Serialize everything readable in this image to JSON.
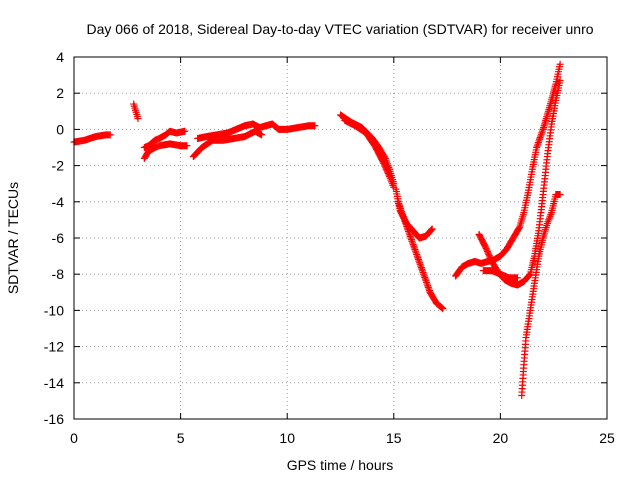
{
  "chart_data": {
    "type": "scatter",
    "title": "Day 066 of 2018, Sidereal Day-to-day VTEC variation (SDTVAR) for receiver unro",
    "xlabel": "GPS time / hours",
    "ylabel": "SDTVAR / TECUs",
    "xlim": [
      0,
      25
    ],
    "ylim": [
      -16,
      4
    ],
    "xticks": [
      0,
      5,
      10,
      15,
      20,
      25
    ],
    "yticks": [
      -16,
      -14,
      -12,
      -10,
      -8,
      -6,
      -4,
      -2,
      0,
      2,
      4
    ],
    "grid": true,
    "marker": "+",
    "color": "#ff0000",
    "series": [
      {
        "name": "seg1",
        "points": [
          [
            0,
            -0.7
          ],
          [
            0.5,
            -0.6
          ],
          [
            1.0,
            -0.4
          ],
          [
            1.5,
            -0.3
          ],
          [
            1.7,
            -0.3
          ]
        ]
      },
      {
        "name": "seg2",
        "points": [
          [
            2.8,
            1.4
          ],
          [
            3.0,
            0.6
          ]
        ]
      },
      {
        "name": "seg3",
        "points": [
          [
            3.3,
            -1.6
          ],
          [
            3.5,
            -1.2
          ],
          [
            3.8,
            -1.0
          ],
          [
            4.0,
            -0.9
          ],
          [
            4.5,
            -0.8
          ],
          [
            5.0,
            -0.9
          ],
          [
            5.3,
            -0.9
          ]
        ]
      },
      {
        "name": "seg4",
        "points": [
          [
            3.3,
            -1.0
          ],
          [
            3.5,
            -0.9
          ],
          [
            3.8,
            -0.6
          ],
          [
            4.0,
            -0.5
          ],
          [
            4.3,
            -0.3
          ],
          [
            4.5,
            -0.1
          ],
          [
            4.8,
            -0.2
          ],
          [
            5.2,
            -0.1
          ]
        ]
      },
      {
        "name": "seg5",
        "points": [
          [
            5.6,
            -1.5
          ],
          [
            6.0,
            -1.0
          ],
          [
            6.5,
            -0.6
          ],
          [
            7.0,
            -0.6
          ],
          [
            7.5,
            -0.5
          ],
          [
            8.0,
            -0.4
          ],
          [
            8.5,
            -0.1
          ],
          [
            8.8,
            -0.3
          ]
        ]
      },
      {
        "name": "seg6",
        "points": [
          [
            5.8,
            -0.5
          ],
          [
            6.2,
            -0.4
          ],
          [
            6.7,
            -0.3
          ],
          [
            7.2,
            -0.2
          ],
          [
            7.6,
            0.0
          ],
          [
            8.0,
            0.2
          ],
          [
            8.4,
            0.3
          ],
          [
            8.7,
            0.1
          ],
          [
            9.0,
            0.2
          ],
          [
            9.3,
            0.3
          ],
          [
            9.6,
            0.0
          ],
          [
            10.0,
            0.0
          ],
          [
            10.5,
            0.1
          ],
          [
            11.0,
            0.2
          ],
          [
            11.3,
            0.2
          ]
        ]
      },
      {
        "name": "seg7",
        "points": [
          [
            12.5,
            0.8
          ],
          [
            13.0,
            0.4
          ],
          [
            13.5,
            0.1
          ],
          [
            14.0,
            -0.5
          ],
          [
            14.3,
            -1.0
          ],
          [
            14.6,
            -1.6
          ],
          [
            14.8,
            -2.2
          ],
          [
            15.0,
            -3.0
          ]
        ]
      },
      {
        "name": "seg8",
        "points": [
          [
            12.7,
            0.5
          ],
          [
            13.2,
            0.2
          ],
          [
            13.7,
            -0.2
          ],
          [
            14.1,
            -0.9
          ],
          [
            14.5,
            -1.8
          ],
          [
            14.8,
            -2.6
          ],
          [
            15.0,
            -3.2
          ]
        ]
      },
      {
        "name": "seg9",
        "points": [
          [
            15.1,
            -3.3
          ],
          [
            15.3,
            -4.5
          ],
          [
            15.6,
            -5.2
          ],
          [
            15.9,
            -5.6
          ],
          [
            16.2,
            -6.0
          ],
          [
            16.5,
            -5.9
          ],
          [
            16.8,
            -5.5
          ]
        ]
      },
      {
        "name": "seg10",
        "points": [
          [
            15.2,
            -4.0
          ],
          [
            15.5,
            -5.0
          ],
          [
            15.8,
            -6.0
          ],
          [
            16.1,
            -7.0
          ],
          [
            16.4,
            -8.0
          ],
          [
            16.7,
            -9.0
          ],
          [
            17.0,
            -9.6
          ],
          [
            17.3,
            -9.9
          ]
        ]
      },
      {
        "name": "seg11",
        "points": [
          [
            17.9,
            -8.1
          ],
          [
            18.2,
            -7.6
          ],
          [
            18.5,
            -7.4
          ],
          [
            18.8,
            -7.3
          ],
          [
            19.1,
            -7.4
          ],
          [
            19.4,
            -7.3
          ],
          [
            19.7,
            -7.2
          ],
          [
            20.0,
            -7.0
          ],
          [
            20.3,
            -6.6
          ],
          [
            20.6,
            -6.0
          ],
          [
            20.9,
            -5.4
          ],
          [
            21.1,
            -4.6
          ],
          [
            21.3,
            -3.5
          ],
          [
            21.5,
            -2.2
          ],
          [
            21.7,
            -1.0
          ],
          [
            22.0,
            0.0
          ],
          [
            22.3,
            1.2
          ],
          [
            22.6,
            2.5
          ],
          [
            22.8,
            3.6
          ]
        ]
      },
      {
        "name": "seg12",
        "points": [
          [
            19.0,
            -5.8
          ],
          [
            19.3,
            -6.5
          ],
          [
            19.6,
            -7.3
          ],
          [
            19.9,
            -7.9
          ],
          [
            20.2,
            -8.3
          ],
          [
            20.5,
            -8.5
          ],
          [
            20.8,
            -8.6
          ],
          [
            21.1,
            -8.4
          ],
          [
            21.4,
            -8.0
          ],
          [
            21.6,
            -7.0
          ],
          [
            21.8,
            -5.6
          ],
          [
            22.0,
            -3.6
          ],
          [
            22.2,
            -1.5
          ],
          [
            22.4,
            0.3
          ],
          [
            22.6,
            1.6
          ],
          [
            22.8,
            2.7
          ]
        ]
      },
      {
        "name": "seg13",
        "points": [
          [
            21.0,
            -14.7
          ],
          [
            21.1,
            -13.0
          ],
          [
            21.2,
            -11.5
          ],
          [
            21.4,
            -10.0
          ],
          [
            21.6,
            -8.5
          ],
          [
            21.8,
            -7.0
          ],
          [
            22.0,
            -6.0
          ],
          [
            22.2,
            -5.2
          ],
          [
            22.4,
            -4.6
          ],
          [
            22.6,
            -3.6
          ],
          [
            22.8,
            -3.6
          ]
        ]
      },
      {
        "name": "seg14",
        "points": [
          [
            19.2,
            -7.8
          ],
          [
            19.6,
            -7.8
          ],
          [
            20.0,
            -8.0
          ],
          [
            20.4,
            -8.2
          ],
          [
            20.8,
            -8.2
          ]
        ]
      }
    ]
  }
}
